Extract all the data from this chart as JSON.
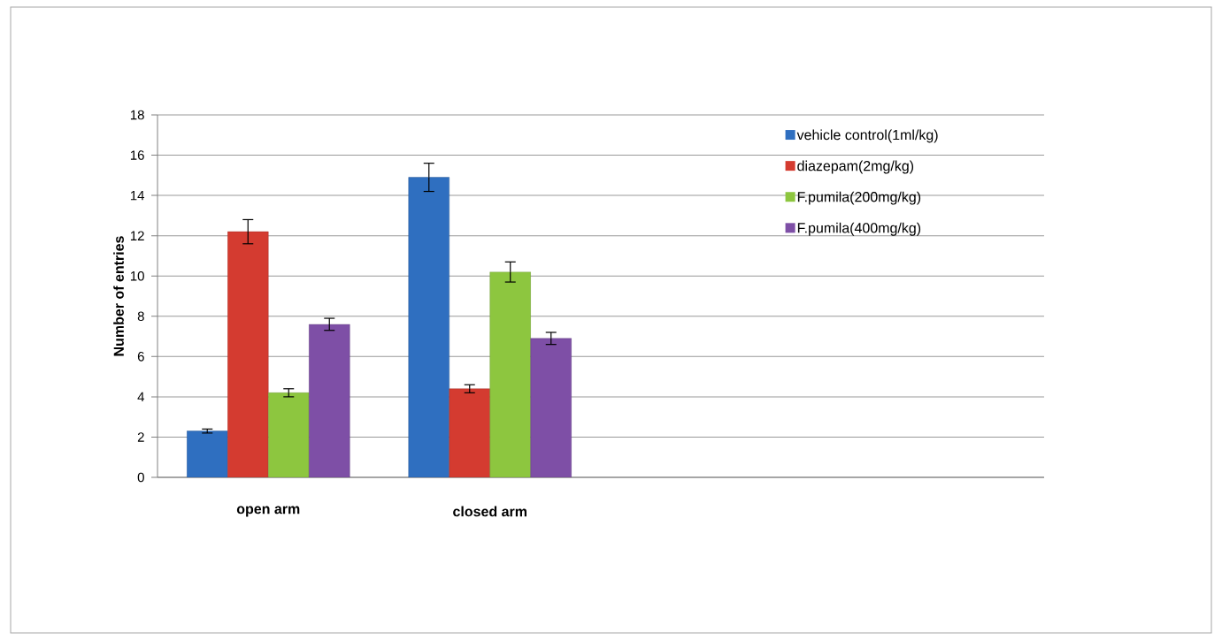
{
  "chart_data": {
    "type": "bar",
    "ylabel": "Number of entries",
    "categories": [
      "open arm",
      "closed arm",
      null,
      null
    ],
    "series": [
      {
        "name": "vehicle control(1ml/kg)",
        "color": "#2f6fc0",
        "values": [
          2.3,
          14.9,
          null,
          null
        ],
        "errors": [
          0.1,
          0.7,
          null,
          null
        ]
      },
      {
        "name": "diazepam(2mg/kg)",
        "color": "#d43b30",
        "values": [
          12.2,
          4.4,
          null,
          null
        ],
        "errors": [
          0.6,
          0.2,
          null,
          null
        ]
      },
      {
        "name": "F.pumila(200mg/kg)",
        "color": "#8dc63f",
        "values": [
          4.2,
          10.2,
          null,
          null
        ],
        "errors": [
          0.2,
          0.5,
          null,
          null
        ]
      },
      {
        "name": "F.pumila(400mg/kg)",
        "color": "#7e4fa6",
        "values": [
          7.6,
          6.9,
          null,
          null
        ],
        "errors": [
          0.3,
          0.3,
          null,
          null
        ]
      }
    ],
    "ylim": [
      0,
      18
    ],
    "yticks": [
      0,
      2,
      4,
      6,
      8,
      10,
      12,
      14,
      16,
      18
    ],
    "grid": "y",
    "legend": "top right"
  }
}
